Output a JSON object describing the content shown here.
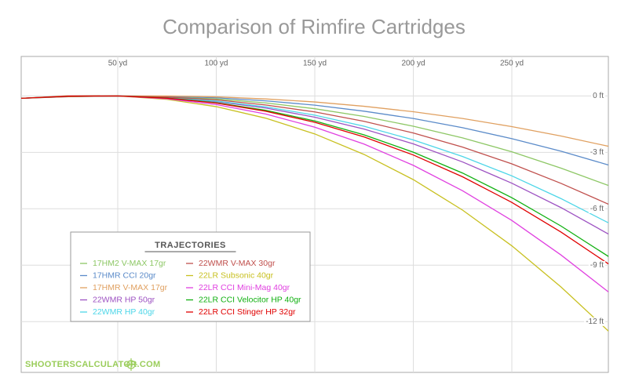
{
  "chart_data": {
    "type": "line",
    "title": "Comparison of Rimfire Cartridges",
    "legend_title": "TRAJECTORIES",
    "legend": "lower left",
    "watermark": "SHOOTERSCALCULATOR.COM",
    "grid": true,
    "xlim": [
      1,
      299
    ],
    "ylim": [
      -14.7,
      2.1
    ],
    "xticks": [
      {
        "value": 50,
        "label": "50 yd"
      },
      {
        "value": 100,
        "label": "100 yd"
      },
      {
        "value": 150,
        "label": "150 yd"
      },
      {
        "value": 200,
        "label": "200 yd"
      },
      {
        "value": 250,
        "label": "250 yd"
      }
    ],
    "yticks": [
      {
        "value": 0,
        "label": "0 ft"
      },
      {
        "value": -3,
        "label": "-3 ft"
      },
      {
        "value": -6,
        "label": "-6 ft"
      },
      {
        "value": -9,
        "label": "-9 ft"
      },
      {
        "value": -12,
        "label": "-12 ft"
      }
    ],
    "x": [
      0,
      25,
      50,
      75,
      100,
      125,
      150,
      175,
      200,
      225,
      250,
      275,
      300
    ],
    "series": [
      {
        "name": "17HM2 V-MAX 17gr",
        "color": "#8dc765",
        "values": [
          -0.13,
          -0.03,
          0,
          -0.04,
          -0.16,
          -0.37,
          -0.68,
          -1.09,
          -1.61,
          -2.23,
          -2.97,
          -3.84,
          -4.8
        ]
      },
      {
        "name": "17HMR CCI 20gr",
        "color": "#5b8bc9",
        "values": [
          -0.13,
          -0.04,
          0,
          -0.02,
          -0.1,
          -0.26,
          -0.49,
          -0.81,
          -1.2,
          -1.69,
          -2.27,
          -2.94,
          -3.7
        ]
      },
      {
        "name": "17HMR V-MAX 17gr",
        "color": "#e0a060",
        "values": [
          -0.13,
          -0.04,
          0,
          0,
          -0.05,
          -0.16,
          -0.32,
          -0.55,
          -0.84,
          -1.2,
          -1.63,
          -2.13,
          -2.7
        ]
      },
      {
        "name": "22WMR HP 50gr",
        "color": "#9d52c2",
        "values": [
          -0.13,
          -0.02,
          0,
          -0.09,
          -0.3,
          -0.64,
          -1.13,
          -1.76,
          -2.55,
          -3.51,
          -4.64,
          -5.94,
          -7.4
        ]
      },
      {
        "name": "22WMR HP 40gr",
        "color": "#4dd6e8",
        "values": [
          -0.13,
          -0.02,
          0,
          -0.08,
          -0.27,
          -0.58,
          -1.02,
          -1.61,
          -2.34,
          -3.22,
          -4.25,
          -5.46,
          -6.8
        ]
      },
      {
        "name": "22WMR V-MAX 30gr",
        "color": "#c0504d",
        "values": [
          -0.13,
          -0.03,
          0,
          -0.06,
          -0.21,
          -0.48,
          -0.85,
          -1.35,
          -1.97,
          -2.72,
          -3.61,
          -4.65,
          -5.8
        ]
      },
      {
        "name": "22LR Subsonic 40gr",
        "color": "#c8c020",
        "values": [
          -0.13,
          0.01,
          0,
          -0.18,
          -0.57,
          -1.18,
          -2.02,
          -3.11,
          -4.45,
          -6.07,
          -7.97,
          -10.16,
          -12.6
        ]
      },
      {
        "name": "22LR CCI Mini-Mag 40gr",
        "color": "#e040e0",
        "values": [
          -0.13,
          0,
          0,
          -0.15,
          -0.46,
          -0.96,
          -1.66,
          -2.56,
          -3.69,
          -5.04,
          -6.62,
          -8.46,
          -10.5
        ]
      },
      {
        "name": "22LR CCI Velocitor HP 40gr",
        "color": "#10b010",
        "values": [
          -0.13,
          -0.01,
          0,
          -0.11,
          -0.36,
          -0.76,
          -1.33,
          -2.07,
          -2.99,
          -4.1,
          -5.41,
          -6.92,
          -8.6
        ]
      },
      {
        "name": "22LR CCI Stinger HP 32gr",
        "color": "#e00000",
        "values": [
          -0.13,
          -0.01,
          0,
          -0.12,
          -0.38,
          -0.81,
          -1.4,
          -2.18,
          -3.14,
          -4.3,
          -5.66,
          -7.24,
          -9.0
        ]
      }
    ]
  }
}
